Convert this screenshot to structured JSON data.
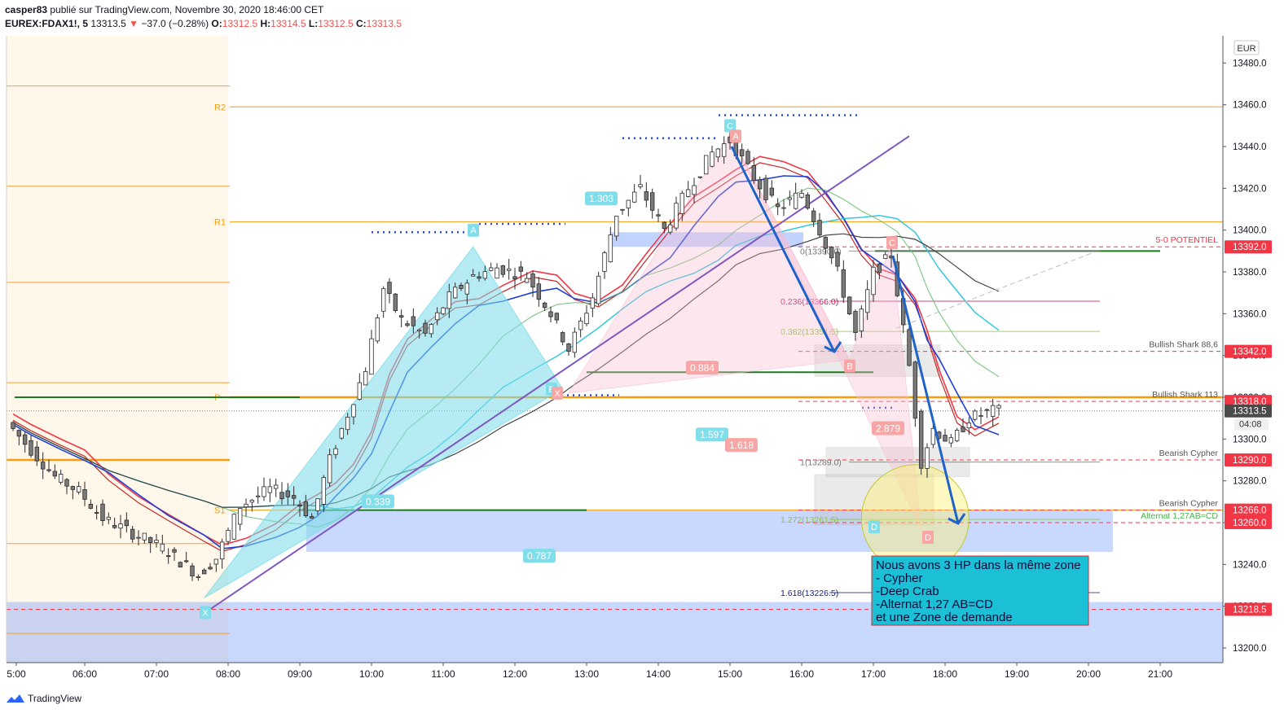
{
  "header": {
    "line1": "casper83 publié sur TradingView.com, Novembre 30, 2020 18:46:00 CET",
    "symbol": "EUREX:FDAX1!, 5",
    "last": "13313.5",
    "change": "−37.0 (−0.28%)",
    "o_label": "O:",
    "o": "13312.5",
    "h_label": "H:",
    "h": "13314.5",
    "l_label": "L:",
    "l": "13312.5",
    "c_label": "C:",
    "c": "13313.5"
  },
  "currency": "EUR",
  "countdown": "04:08",
  "brand": "TradingView",
  "chart_data": {
    "type": "candlestick",
    "symbol": "EUREX:FDAX1!",
    "interval": "5",
    "ylim": [
      13193,
      13493
    ],
    "y_ticks": [
      13200,
      13220,
      13240,
      13260,
      13280,
      13300,
      13320,
      13340,
      13360,
      13380,
      13400,
      13420,
      13440,
      13460,
      13480
    ],
    "x_ticks": [
      "5:00",
      "06:00",
      "07:00",
      "08:00",
      "09:00",
      "10:00",
      "11:00",
      "12:00",
      "13:00",
      "14:00",
      "15:00",
      "16:00",
      "17:00",
      "18:00",
      "19:00",
      "20:00",
      "21:00"
    ],
    "price_path": [
      {
        "t": "05:00",
        "p": 13308
      },
      {
        "t": "05:15",
        "p": 13298
      },
      {
        "t": "05:40",
        "p": 13282
      },
      {
        "t": "06:00",
        "p": 13275
      },
      {
        "t": "06:20",
        "p": 13262
      },
      {
        "t": "06:45",
        "p": 13255
      },
      {
        "t": "07:10",
        "p": 13248
      },
      {
        "t": "07:40",
        "p": 13235
      },
      {
        "t": "07:55",
        "p": 13243
      },
      {
        "t": "08:15",
        "p": 13268
      },
      {
        "t": "08:40",
        "p": 13276
      },
      {
        "t": "09:00",
        "p": 13272
      },
      {
        "t": "09:15",
        "p": 13262
      },
      {
        "t": "09:30",
        "p": 13290
      },
      {
        "t": "09:45",
        "p": 13312
      },
      {
        "t": "10:00",
        "p": 13334
      },
      {
        "t": "10:15",
        "p": 13372
      },
      {
        "t": "10:30",
        "p": 13357
      },
      {
        "t": "10:50",
        "p": 13350
      },
      {
        "t": "11:10",
        "p": 13368
      },
      {
        "t": "11:30",
        "p": 13378
      },
      {
        "t": "11:50",
        "p": 13382
      },
      {
        "t": "12:15",
        "p": 13378
      },
      {
        "t": "12:35",
        "p": 13360
      },
      {
        "t": "12:50",
        "p": 13343
      },
      {
        "t": "13:10",
        "p": 13368
      },
      {
        "t": "13:30",
        "p": 13408
      },
      {
        "t": "13:50",
        "p": 13420
      },
      {
        "t": "14:10",
        "p": 13400
      },
      {
        "t": "14:30",
        "p": 13420
      },
      {
        "t": "14:50",
        "p": 13437
      },
      {
        "t": "15:05",
        "p": 13443
      },
      {
        "t": "15:25",
        "p": 13425
      },
      {
        "t": "15:45",
        "p": 13410
      },
      {
        "t": "16:05",
        "p": 13418
      },
      {
        "t": "16:20",
        "p": 13400
      },
      {
        "t": "16:35",
        "p": 13380
      },
      {
        "t": "16:50",
        "p": 13350
      },
      {
        "t": "17:05",
        "p": 13380
      },
      {
        "t": "17:20",
        "p": 13388
      },
      {
        "t": "17:35",
        "p": 13335
      },
      {
        "t": "17:45",
        "p": 13289
      },
      {
        "t": "17:55",
        "p": 13305
      },
      {
        "t": "18:10",
        "p": 13298
      },
      {
        "t": "18:25",
        "p": 13310
      },
      {
        "t": "18:45",
        "p": 13313.5
      }
    ],
    "pivots": [
      {
        "label": "R2",
        "value": 13459
      },
      {
        "label": "R1",
        "value": 13404
      },
      {
        "label": "P",
        "value": 13320
      },
      {
        "label": "S1",
        "value": 13266
      }
    ],
    "price_labels": [
      {
        "text": "13392.0",
        "value": 13392,
        "color": "#f23645",
        "note": "5-0 POTENTIEL"
      },
      {
        "text": "13342.0",
        "value": 13342,
        "color": "#f23645",
        "note": "Bullish Shark 88,6"
      },
      {
        "text": "13318.0",
        "value": 13318,
        "color": "#f23645",
        "note": "Bullish Shark 113"
      },
      {
        "text": "13313.5",
        "value": 13313.5,
        "color": "#4a4a4a",
        "note": ""
      },
      {
        "text": "13290.0",
        "value": 13290,
        "color": "#f23645",
        "note": "Bearish Cypher"
      },
      {
        "text": "13266.0",
        "value": 13266,
        "color": "#f23645",
        "note": "Bearish Cypher"
      },
      {
        "text": "13260.0",
        "value": 13260,
        "color": "#f23645",
        "note": "Alternat 1,27AB=CD"
      },
      {
        "text": "13218.5",
        "value": 13218.5,
        "color": "#f23645",
        "note": ""
      }
    ],
    "fib_levels": [
      {
        "text": "0(13390.0)",
        "value": 13390
      },
      {
        "text": "0.236(13366.0)",
        "value": 13366
      },
      {
        "text": "0.382(13351.5)",
        "value": 13351.5
      },
      {
        "text": "1(13289.0)",
        "value": 13289
      },
      {
        "text": "1.272(13261.5)",
        "value": 13261.5
      },
      {
        "text": "1.618(13226.5)",
        "value": 13226.5
      }
    ],
    "pattern_ratios": [
      "1.303",
      "0.339",
      "0.787",
      "1.597",
      "1.618",
      "0.884",
      "2.879"
    ],
    "pattern_points": [
      "X",
      "A",
      "B",
      "C",
      "D",
      "X",
      "A",
      "B",
      "C",
      "D"
    ],
    "annotation_lines": [
      "Nous avons 3 HP dans la même zone",
      "- Cypher",
      "-Deep Crab",
      "-Alternat 1,27 AB=CD",
      "et une Zone de demande"
    ]
  }
}
